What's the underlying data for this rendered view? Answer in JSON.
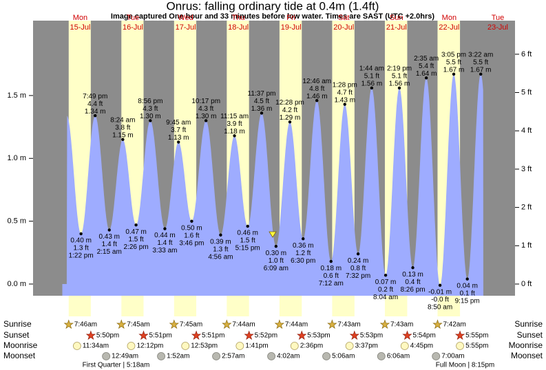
{
  "chart_data": {
    "type": "tide",
    "title": "Onrus: falling  ordinary tide at 0.4m (1.4ft)",
    "subtitle": "Image captured One hour and 33 minutes before low water. Times are SAST (UTC +2.0hrs)",
    "days": [
      {
        "name": "Mon",
        "date": "15-Jul"
      },
      {
        "name": "Tue",
        "date": "16-Jul"
      },
      {
        "name": "Wed",
        "date": "17-Jul"
      },
      {
        "name": "Thu",
        "date": "18-Jul"
      },
      {
        "name": "Fri",
        "date": "19-Jul"
      },
      {
        "name": "Sat",
        "date": "20-Jul"
      },
      {
        "name": "Sun",
        "date": "21-Jul"
      },
      {
        "name": "Mon",
        "date": "22-Jul"
      },
      {
        "name": "Tue",
        "date": "23-Jul"
      }
    ],
    "ylim": [
      -0.093,
      2.096
    ],
    "yticks": [
      {
        "value": 0,
        "label": "0.0 m"
      },
      {
        "value": 0.5,
        "label": "0.5 m"
      },
      {
        "value": 1,
        "label": "1.0 m"
      },
      {
        "value": 1.5,
        "label": "1.5 m"
      }
    ],
    "y2lim": [
      -0.305,
      6.877
    ],
    "y2ticks": [
      {
        "value": 0,
        "label": "0 ft"
      },
      {
        "value": 1,
        "label": "1 ft"
      },
      {
        "value": 2,
        "label": "2 ft"
      },
      {
        "value": 3,
        "label": "3 ft"
      },
      {
        "value": 4,
        "label": "4 ft"
      },
      {
        "value": 5,
        "label": "5 ft"
      },
      {
        "value": 6,
        "label": "6 ft"
      }
    ],
    "colors": {
      "night": "#8c8c8c",
      "day": "#ffffc8",
      "water": "#9eacff",
      "day_label": "#d00000"
    },
    "extremes": [
      {
        "date": "15-Jul",
        "time": "1:22 pm",
        "height": 0.4,
        "height_label": "0.40 m",
        "ft": "1.3 ft"
      },
      {
        "date": "15-Jul",
        "time": "7:49 pm",
        "height": 1.34,
        "height_label": "1.34 m",
        "ft": "4.4 ft"
      },
      {
        "date": "16-Jul",
        "time": "2:15 am",
        "height": 0.43,
        "height_label": "0.43 m",
        "ft": "1.4 ft"
      },
      {
        "date": "16-Jul",
        "time": "8:24 am",
        "height": 1.15,
        "height_label": "1.15 m",
        "ft": "3.8 ft"
      },
      {
        "date": "16-Jul",
        "time": "2:26 pm",
        "height": 0.47,
        "height_label": "0.47 m",
        "ft": "1.5 ft"
      },
      {
        "date": "16-Jul",
        "time": "8:56 pm",
        "height": 1.3,
        "height_label": "1.30 m",
        "ft": "4.3 ft"
      },
      {
        "date": "17-Jul",
        "time": "3:33 am",
        "height": 0.44,
        "height_label": "0.44 m",
        "ft": "1.4 ft"
      },
      {
        "date": "17-Jul",
        "time": "9:45 am",
        "height": 1.13,
        "height_label": "1.13 m",
        "ft": "3.7 ft"
      },
      {
        "date": "17-Jul",
        "time": "3:46 pm",
        "height": 0.5,
        "height_label": "0.50 m",
        "ft": "1.6 ft"
      },
      {
        "date": "17-Jul",
        "time": "10:17 pm",
        "height": 1.3,
        "height_label": "1.30 m",
        "ft": "4.3 ft"
      },
      {
        "date": "18-Jul",
        "time": "4:56 am",
        "height": 0.39,
        "height_label": "0.39 m",
        "ft": "1.3 ft"
      },
      {
        "date": "18-Jul",
        "time": "11:15 am",
        "height": 1.18,
        "height_label": "1.18 m",
        "ft": "3.9 ft"
      },
      {
        "date": "18-Jul",
        "time": "5:15 pm",
        "height": 0.46,
        "height_label": "0.46 m",
        "ft": "1.5 ft"
      },
      {
        "date": "18-Jul",
        "time": "11:37 pm",
        "height": 1.36,
        "height_label": "1.36 m",
        "ft": "4.5 ft"
      },
      {
        "date": "19-Jul",
        "time": "6:09 am",
        "height": 0.3,
        "height_label": "0.30 m",
        "ft": "1.0 ft"
      },
      {
        "date": "19-Jul",
        "time": "12:28 pm",
        "height": 1.29,
        "height_label": "1.29 m",
        "ft": "4.2 ft"
      },
      {
        "date": "19-Jul",
        "time": "6:30 pm",
        "height": 0.36,
        "height_label": "0.36 m",
        "ft": "1.2 ft"
      },
      {
        "date": "20-Jul",
        "time": "12:46 am",
        "height": 1.46,
        "height_label": "1.46 m",
        "ft": "4.8 ft"
      },
      {
        "date": "20-Jul",
        "time": "7:12 am",
        "height": 0.18,
        "height_label": "0.18 m",
        "ft": "0.6 ft"
      },
      {
        "date": "20-Jul",
        "time": "1:28 pm",
        "height": 1.43,
        "height_label": "1.43 m",
        "ft": "4.7 ft"
      },
      {
        "date": "20-Jul",
        "time": "7:32 pm",
        "height": 0.24,
        "height_label": "0.24 m",
        "ft": "0.8 ft"
      },
      {
        "date": "21-Jul",
        "time": "1:44 am",
        "height": 1.56,
        "height_label": "1.56 m",
        "ft": "5.1 ft"
      },
      {
        "date": "21-Jul",
        "time": "8:04 am",
        "height": 0.07,
        "height_label": "0.07 m",
        "ft": "0.2 ft"
      },
      {
        "date": "21-Jul",
        "time": "2:19 pm",
        "height": 1.56,
        "height_label": "1.56 m",
        "ft": "5.1 ft"
      },
      {
        "date": "21-Jul",
        "time": "8:26 pm",
        "height": 0.13,
        "height_label": "0.13 m",
        "ft": "0.4 ft"
      },
      {
        "date": "22-Jul",
        "time": "2:35 am",
        "height": 1.64,
        "height_label": "1.64 m",
        "ft": "5.4 ft"
      },
      {
        "date": "22-Jul",
        "time": "8:50 am",
        "height": -0.01,
        "height_label": "-0.01 m",
        "ft": "-0.0 ft"
      },
      {
        "date": "22-Jul",
        "time": "3:05 pm",
        "height": 1.67,
        "height_label": "1.67 m",
        "ft": "5.5 ft"
      },
      {
        "date": "22-Jul",
        "time": "9:15 pm",
        "height": 0.04,
        "height_label": "0.04 m",
        "ft": "0.1 ft"
      },
      {
        "date": "23-Jul",
        "time": "3:22 am",
        "height": 1.67,
        "height_label": "1.67 m",
        "ft": "5.5 ft"
      }
    ],
    "almanac": {
      "row_labels": [
        "Sunrise",
        "Sunset",
        "Moonrise",
        "Moonset"
      ],
      "days": [
        {
          "date": "15-Jul",
          "sunrise": "7:46am",
          "sunset": "5:50pm",
          "moonrise": "11:34am"
        },
        {
          "date": "16-Jul",
          "sunrise": "7:45am",
          "sunset": "5:51pm",
          "moonrise": "12:12pm",
          "moonset": "12:49am"
        },
        {
          "date": "17-Jul",
          "sunrise": "7:45am",
          "sunset": "5:51pm",
          "moonrise": "12:53pm",
          "moonset": "1:52am"
        },
        {
          "date": "18-Jul",
          "sunrise": "7:44am",
          "sunset": "5:52pm",
          "moonrise": "1:41pm",
          "moonset": "2:57am"
        },
        {
          "date": "19-Jul",
          "sunrise": "7:44am",
          "sunset": "5:53pm",
          "moonrise": "2:36pm",
          "moonset": "4:02am"
        },
        {
          "date": "20-Jul",
          "sunrise": "7:43am",
          "sunset": "5:53pm",
          "moonrise": "3:37pm",
          "moonset": "5:06am"
        },
        {
          "date": "21-Jul",
          "sunrise": "7:43am",
          "sunset": "5:54pm",
          "moonrise": "4:45pm",
          "moonset": "6:06am"
        },
        {
          "date": "22-Jul",
          "sunrise": "7:42am",
          "sunset": "5:55pm",
          "moonrise": "5:55pm",
          "moonset": "7:00am"
        }
      ],
      "notes": [
        {
          "date": "16-Jul",
          "text": "First Quarter | 5:18am"
        },
        {
          "date": "22-Jul",
          "text": "Full Moon | 8:15pm"
        }
      ]
    }
  }
}
